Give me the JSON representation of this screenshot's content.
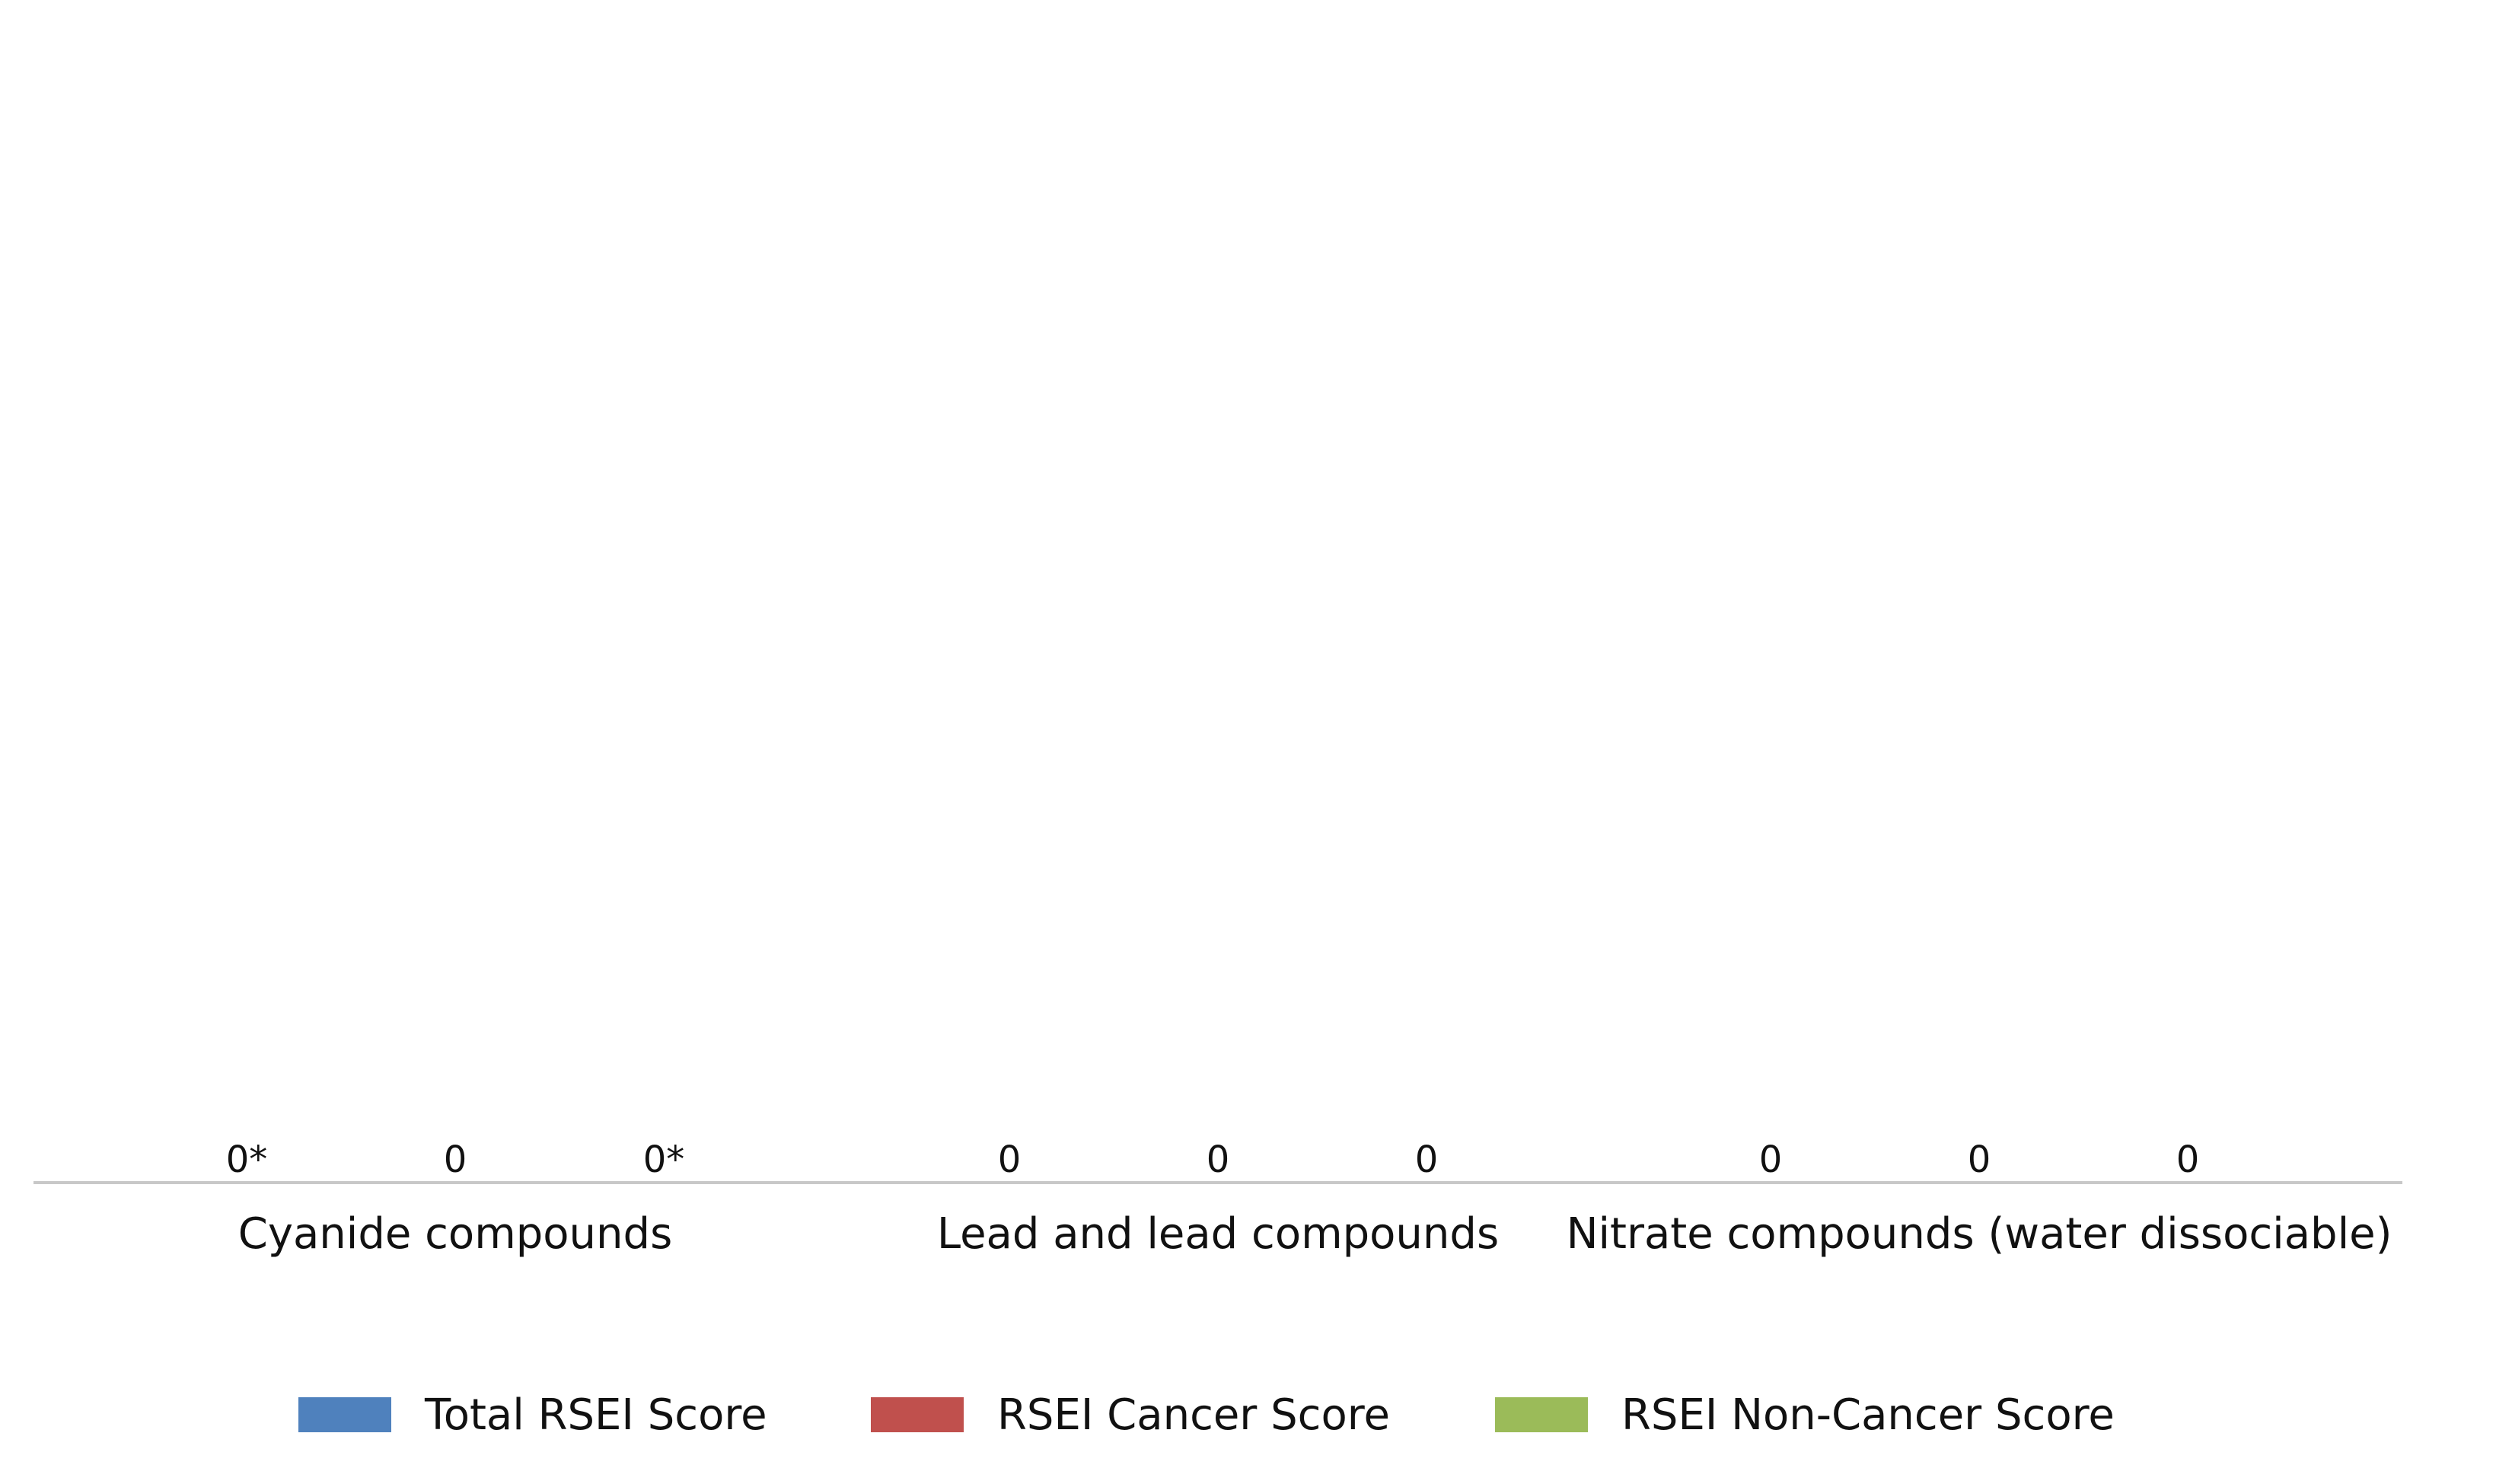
{
  "chart_data": {
    "type": "bar",
    "categories": [
      "Cyanide compounds",
      "Lead and lead compounds",
      "Nitrate compounds (water dissociable)"
    ],
    "series": [
      {
        "name": "Total RSEI Score",
        "color": "#4f81bd",
        "values": [
          0,
          0,
          0
        ],
        "labels": [
          "0*",
          "0",
          "0"
        ]
      },
      {
        "name": "RSEI Cancer Score",
        "color": "#c0504d",
        "values": [
          0,
          0,
          0
        ],
        "labels": [
          "0",
          "0",
          "0"
        ]
      },
      {
        "name": "RSEI Non-Cancer Score",
        "color": "#9bbb59",
        "values": [
          0,
          0,
          0
        ],
        "labels": [
          "0*",
          "0",
          "0"
        ]
      }
    ],
    "legend_position": "bottom",
    "grid": false,
    "data_labels": true
  }
}
